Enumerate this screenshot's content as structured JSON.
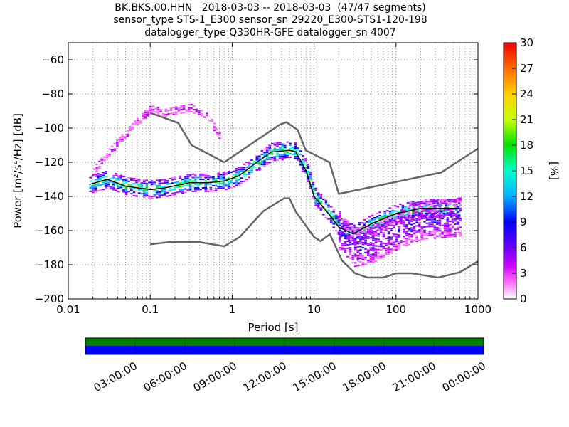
{
  "chart_data": {
    "type": "heatmap",
    "title_lines": [
      "BK.BKS.00.HHN   2018-03-03 -- 2018-03-03  (47/47 segments)",
      "sensor_type STS-1_E300 sensor_sn 29220_E300-STS1-120-198",
      "datalogger_type Q330HR-GFE datalogger_sn 4007"
    ],
    "xlabel": "Period [s]",
    "ylabel": "Power [m²/s⁴/Hz] [dB]",
    "x_scale": "log",
    "xlim": [
      0.01,
      1000
    ],
    "ylim": [
      -200,
      -50
    ],
    "x_ticks": [
      0.01,
      0.1,
      1,
      10,
      100,
      1000
    ],
    "x_tick_labels": [
      "0.01",
      "0.1",
      "1",
      "10",
      "100",
      "1000"
    ],
    "y_ticks": [
      -200,
      -180,
      -160,
      -140,
      -120,
      -100,
      -80,
      -60
    ],
    "y_tick_labels": [
      "−200",
      "−180",
      "−160",
      "−140",
      "−120",
      "−100",
      "−80",
      "−60"
    ],
    "grid": true,
    "colorbar": {
      "label": "[%]",
      "range": [
        0,
        30
      ],
      "ticks": [
        0,
        3,
        6,
        9,
        12,
        15,
        18,
        21,
        24,
        27,
        30
      ],
      "tick_labels": [
        "0",
        "3",
        "6",
        "9",
        "12",
        "15",
        "18",
        "21",
        "24",
        "27",
        "30"
      ],
      "colormap": "pqlx"
    },
    "noise_models": [
      {
        "name": "NHNM",
        "color": "#666666",
        "points": [
          [
            0.1,
            -91
          ],
          [
            0.22,
            -97
          ],
          [
            0.32,
            -110
          ],
          [
            0.8,
            -120
          ],
          [
            3.8,
            -98
          ],
          [
            4.6,
            -96.5
          ],
          [
            6.3,
            -101
          ],
          [
            7.9,
            -113
          ],
          [
            15.4,
            -120
          ],
          [
            20,
            -138.5
          ],
          [
            354.8,
            -126
          ],
          [
            1000,
            -112
          ]
        ]
      },
      {
        "name": "NLNM",
        "color": "#666666",
        "points": [
          [
            0.1,
            -168
          ],
          [
            0.17,
            -166.7
          ],
          [
            0.4,
            -166.7
          ],
          [
            0.8,
            -169.2
          ],
          [
            1.24,
            -163.7
          ],
          [
            2.4,
            -148.6
          ],
          [
            4.3,
            -141.1
          ],
          [
            5,
            -141.1
          ],
          [
            6,
            -149
          ],
          [
            10,
            -163.8
          ],
          [
            12,
            -166.2
          ],
          [
            15.6,
            -162.1
          ],
          [
            21.9,
            -177.5
          ],
          [
            31.6,
            -185
          ],
          [
            45,
            -187.5
          ],
          [
            70,
            -187.5
          ],
          [
            101,
            -185
          ],
          [
            154,
            -185
          ],
          [
            328,
            -187.5
          ],
          [
            600,
            -184.4
          ],
          [
            1000,
            -178
          ]
        ]
      }
    ],
    "heatmap_bands": [
      {
        "name": "high-frequency outliers",
        "x": [
          0.02,
          0.03,
          0.05,
          0.08,
          0.1,
          0.15,
          0.3,
          0.5,
          0.7
        ],
        "y": [
          -125,
          -115,
          -103,
          -93,
          -89,
          -91,
          -88,
          -94,
          -105
        ],
        "thickness": 3,
        "percent": 2
      },
      {
        "name": "main band",
        "x": [
          0.018,
          0.03,
          0.05,
          0.1,
          0.15,
          0.3,
          0.5,
          0.8,
          1.2,
          2,
          3,
          5,
          6,
          8,
          10,
          15,
          20,
          30,
          50,
          100,
          200,
          600
        ],
        "y": [
          -133,
          -130,
          -134,
          -136,
          -135,
          -132,
          -132,
          -131,
          -128,
          -120,
          -114,
          -113,
          -114,
          -125,
          -140,
          -150,
          -158,
          -162,
          -156,
          -150,
          -147,
          -147
        ],
        "thickness": 10,
        "percent": 18
      },
      {
        "name": "long-period spread",
        "x": [
          20,
          30,
          50,
          100,
          200,
          600
        ],
        "y": [
          -160,
          -170,
          -168,
          -160,
          -154,
          -152
        ],
        "thickness": 22,
        "percent": 6
      }
    ],
    "mode_line": {
      "color": "#000000",
      "points": [
        [
          0.018,
          -133
        ],
        [
          0.03,
          -130
        ],
        [
          0.05,
          -134
        ],
        [
          0.1,
          -136
        ],
        [
          0.15,
          -135
        ],
        [
          0.3,
          -132
        ],
        [
          0.5,
          -132
        ],
        [
          0.8,
          -131
        ],
        [
          1.2,
          -128
        ],
        [
          2,
          -120
        ],
        [
          3,
          -114
        ],
        [
          5,
          -113
        ],
        [
          6,
          -114
        ],
        [
          8,
          -125
        ],
        [
          10,
          -140
        ],
        [
          15,
          -150
        ],
        [
          20,
          -158
        ],
        [
          30,
          -162
        ],
        [
          50,
          -156
        ],
        [
          100,
          -150
        ],
        [
          200,
          -147
        ],
        [
          600,
          -147
        ]
      ]
    },
    "data_availability": {
      "colors": {
        "top": "#008000",
        "bottom": "#0000ff"
      },
      "time_ticks": [
        "03:00:00",
        "06:00:00",
        "09:00:00",
        "12:00:00",
        "15:00:00",
        "18:00:00",
        "21:00:00",
        "00:00:00"
      ]
    }
  }
}
